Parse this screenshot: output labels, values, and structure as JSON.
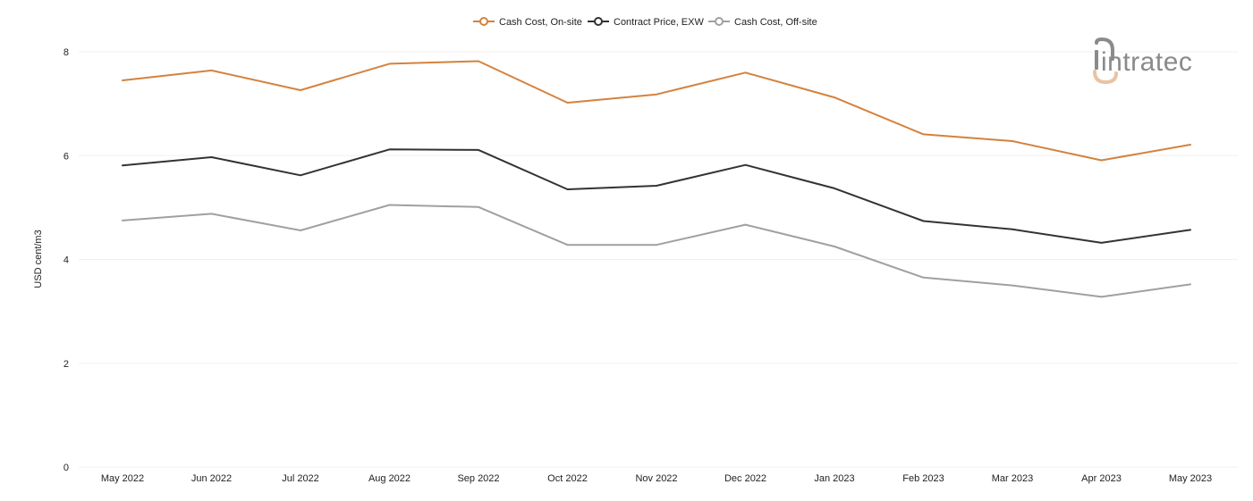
{
  "chart_data": {
    "type": "line",
    "title": "",
    "xlabel": "",
    "ylabel": "USD cent/m3",
    "ylim": [
      0,
      8
    ],
    "yticks": [
      "0",
      "2",
      "4",
      "6",
      "8"
    ],
    "grid": true,
    "legend_position": "top-center",
    "categories": [
      "May 2022",
      "Jun 2022",
      "Jul 2022",
      "Aug 2022",
      "Sep 2022",
      "Oct 2022",
      "Nov 2022",
      "Dec 2022",
      "Jan 2023",
      "Feb 2023",
      "Mar 2023",
      "Apr 2023",
      "May 2023"
    ],
    "series": [
      {
        "name": "Cash Cost, On-site",
        "color": "#d4823e",
        "values": [
          7.45,
          7.64,
          7.26,
          7.77,
          7.82,
          7.02,
          7.18,
          7.6,
          7.12,
          6.41,
          6.28,
          5.91,
          6.21
        ]
      },
      {
        "name": "Contract Price, EXW",
        "color": "#333333",
        "values": [
          5.81,
          5.97,
          5.62,
          6.12,
          6.11,
          5.35,
          5.42,
          5.82,
          5.37,
          4.74,
          4.58,
          4.32,
          4.57
        ]
      },
      {
        "name": "Cash Cost, Off-site",
        "color": "#a0a0a0",
        "values": [
          4.75,
          4.88,
          4.56,
          5.05,
          5.01,
          4.28,
          4.28,
          4.67,
          4.25,
          3.65,
          3.5,
          3.28,
          3.52
        ]
      }
    ]
  },
  "logo": {
    "text": "intratec",
    "icon": "intratec-logo-icon",
    "color": "#8a8a8a",
    "accent": "#e8c4a4"
  }
}
